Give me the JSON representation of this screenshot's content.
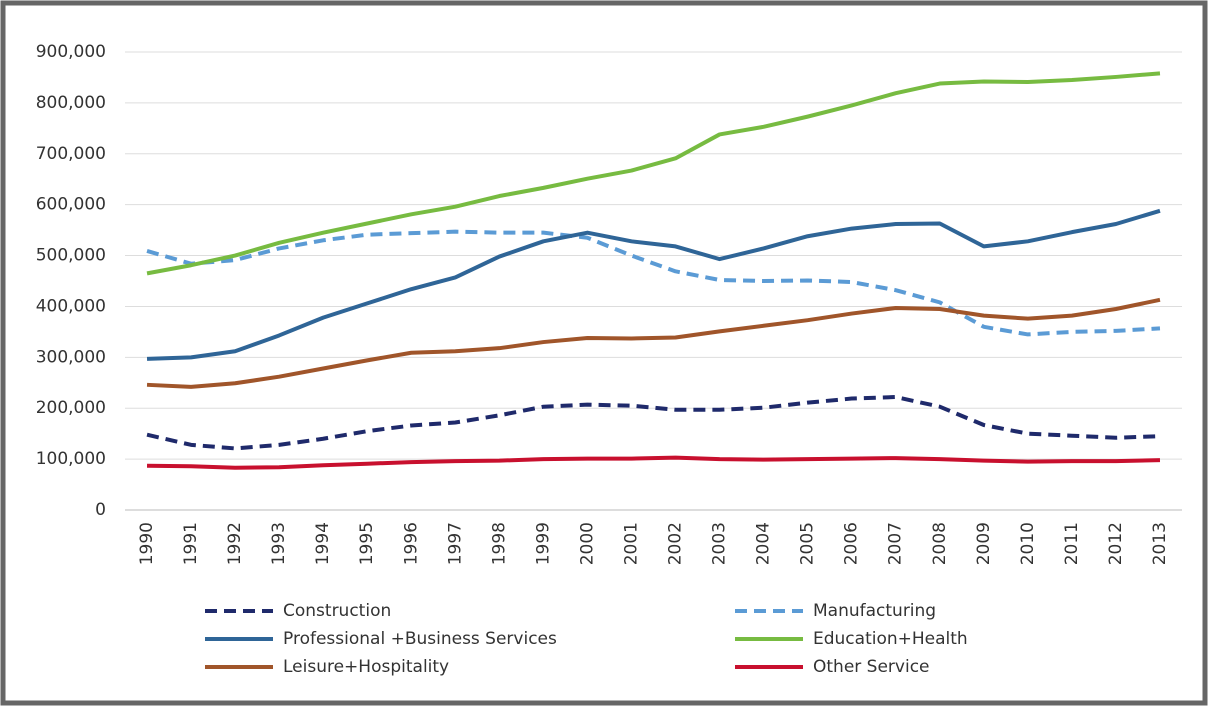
{
  "chart_data": {
    "type": "line",
    "categories": [
      "1990",
      "1991",
      "1992",
      "1993",
      "1994",
      "1995",
      "1996",
      "1997",
      "1998",
      "1999",
      "2000",
      "2001",
      "2002",
      "2003",
      "2004",
      "2005",
      "2006",
      "2007",
      "2008",
      "2009",
      "2010",
      "2011",
      "2012",
      "2013"
    ],
    "series": [
      {
        "name": "Construction",
        "color": "#1f2a6b",
        "dashed": true,
        "values": [
          148000,
          128000,
          121000,
          128000,
          140000,
          155000,
          166000,
          172000,
          186000,
          203000,
          207000,
          205000,
          197000,
          197000,
          201000,
          211000,
          219000,
          222000,
          203000,
          167000,
          150000,
          146000,
          142000,
          145000
        ]
      },
      {
        "name": "Manufacturing",
        "color": "#5b9bd5",
        "dashed": true,
        "values": [
          509000,
          484000,
          491000,
          514000,
          530000,
          541000,
          544000,
          547000,
          545000,
          545000,
          535000,
          500000,
          469000,
          452000,
          450000,
          451000,
          448000,
          432000,
          408000,
          360000,
          345000,
          350000,
          352000,
          357000
        ]
      },
      {
        "name": "Professional +Business Services",
        "color": "#2f6597",
        "dashed": false,
        "values": [
          297000,
          300000,
          312000,
          343000,
          378000,
          406000,
          434000,
          457000,
          498000,
          528000,
          545000,
          528000,
          518000,
          493000,
          514000,
          538000,
          553000,
          562000,
          563000,
          518000,
          528000,
          546000,
          562000,
          588000
        ]
      },
      {
        "name": "Education+Health",
        "color": "#77bb41",
        "dashed": false,
        "values": [
          465000,
          481000,
          500000,
          525000,
          545000,
          563000,
          581000,
          596000,
          617000,
          633000,
          651000,
          667000,
          691000,
          738000,
          753000,
          773000,
          795000,
          819000,
          838000,
          842000,
          841000,
          845000,
          851000,
          858000
        ]
      },
      {
        "name": "Leisure+Hospitality",
        "color": "#a0552a",
        "dashed": false,
        "values": [
          246000,
          242000,
          249000,
          262000,
          278000,
          294000,
          309000,
          312000,
          318000,
          330000,
          338000,
          337000,
          339000,
          351000,
          362000,
          373000,
          386000,
          397000,
          395000,
          382000,
          376000,
          382000,
          395000,
          413000
        ]
      },
      {
        "name": "Other Service",
        "color": "#c8102e",
        "dashed": false,
        "values": [
          87000,
          86000,
          83000,
          84000,
          88000,
          91000,
          94000,
          96000,
          97000,
          100000,
          101000,
          101000,
          103000,
          100000,
          99000,
          100000,
          101000,
          102000,
          100000,
          97000,
          95000,
          96000,
          96000,
          98000
        ]
      }
    ],
    "ylim": [
      0,
      900000
    ],
    "yticks": [
      0,
      {
        "value": 100000,
        "label": "100,000"
      },
      {
        "value": 200000,
        "label": "200,000"
      },
      {
        "value": 300000,
        "label": "300,000"
      },
      {
        "value": 400000,
        "label": "400,000"
      },
      {
        "value": 500000,
        "label": "500,000"
      },
      {
        "value": 600000,
        "label": "600,000"
      },
      {
        "value": 700000,
        "label": "700,000"
      },
      {
        "value": 800000,
        "label": "800,000"
      },
      {
        "value": 900000,
        "label": "900,000"
      }
    ],
    "grid": true
  }
}
